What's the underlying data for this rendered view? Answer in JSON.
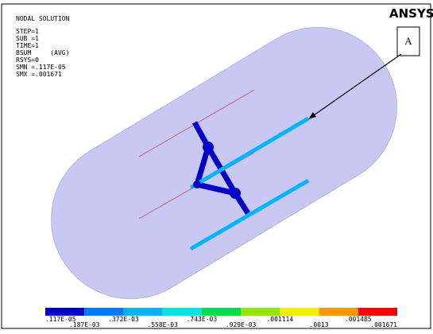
{
  "header": {
    "title": "NODAL SOLUTION",
    "lines": [
      "STEP=1",
      "SUB =1",
      "TIME=1",
      "BSUM     (AVG)",
      "RSYS=0",
      "SMN =.117E-05",
      "SMX =.001671"
    ]
  },
  "logo": "ANSYS",
  "callout": "A",
  "legend": {
    "labels": [
      ".117E-05",
      ".187E-03",
      ".372E-03",
      ".558E-03",
      ".743E-03",
      ".929E-03",
      ".001114",
      ".0013",
      ".001485",
      ".001671"
    ],
    "colors": [
      "#0000c8",
      "#0078ff",
      "#00b4ff",
      "#00e6e6",
      "#00dc50",
      "#96e600",
      "#f0f000",
      "#ff9600",
      "#ff0000"
    ]
  }
}
